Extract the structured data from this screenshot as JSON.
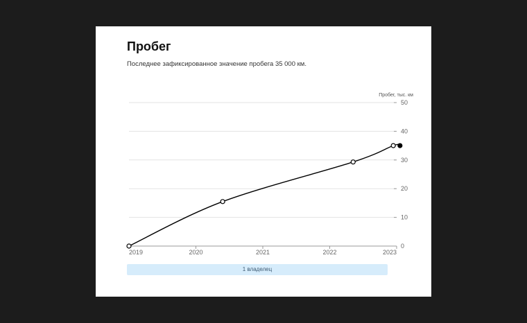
{
  "card": {
    "title": "Пробег",
    "subtitle": "Последнее зафиксированное значение пробега 35 000 км.",
    "owner_bar_label": "1 владелец"
  },
  "chart_data": {
    "type": "line",
    "title": "Пробег",
    "ylabel": "Пробег, тыс. км",
    "xlabel": "",
    "x_ticks": [
      "2019",
      "2020",
      "2021",
      "2022",
      "2023"
    ],
    "y_ticks": [
      0,
      10,
      20,
      30,
      40,
      50
    ],
    "xlim": [
      2019.0,
      2023.0
    ],
    "ylim": [
      0,
      50
    ],
    "grid": true,
    "y_axis_position": "right",
    "series": [
      {
        "color": "#000000",
        "x": [
          2019.0,
          2020.4,
          2022.35,
          2022.95,
          2023.05
        ],
        "y": [
          0,
          15.5,
          29.3,
          35,
          35
        ]
      }
    ],
    "colors": {
      "line": "#000000",
      "grid": "#e3e3e3",
      "tick_text": "#666666",
      "owner_bar": "#d6ecfb"
    }
  }
}
